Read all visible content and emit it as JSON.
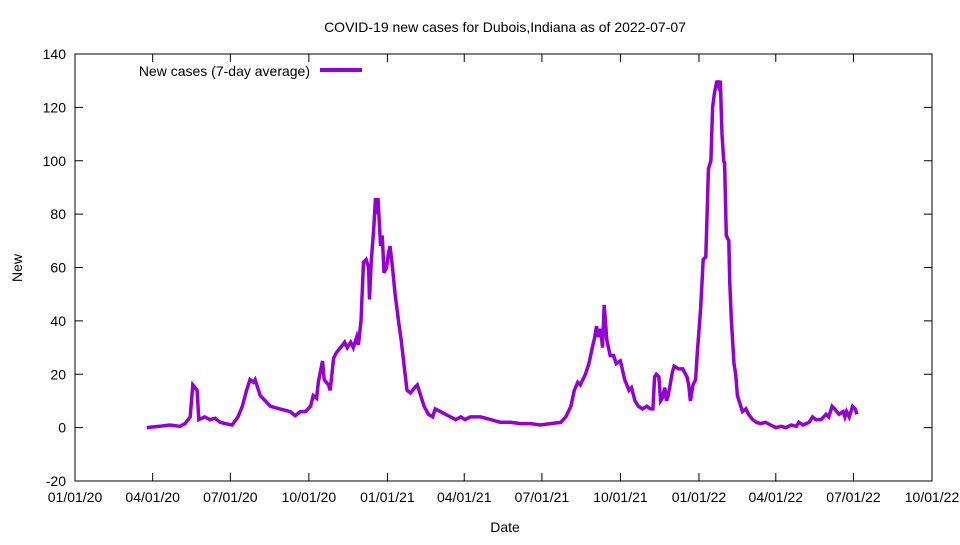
{
  "chart_data": {
    "type": "line",
    "title": "COVID-19 new cases for Dubois,Indiana as of 2022-07-07",
    "xlabel": "Date",
    "ylabel": "New",
    "xlim": [
      "2020-01-01",
      "2022-10-01"
    ],
    "ylim": [
      -20,
      140
    ],
    "x_ticks": [
      "01/01/20",
      "04/01/20",
      "07/01/20",
      "10/01/20",
      "01/01/21",
      "04/01/21",
      "07/01/21",
      "10/01/21",
      "01/01/22",
      "04/01/22",
      "07/01/22",
      "10/01/22"
    ],
    "x_tick_dates": [
      "2020-01-01",
      "2020-04-01",
      "2020-07-01",
      "2020-10-01",
      "2021-01-01",
      "2021-04-01",
      "2021-07-01",
      "2021-10-01",
      "2022-01-01",
      "2022-04-01",
      "2022-07-01",
      "2022-10-01"
    ],
    "y_ticks": [
      -20,
      0,
      20,
      40,
      60,
      80,
      100,
      120,
      140
    ],
    "grid": false,
    "legend_placement": "top-left",
    "series": [
      {
        "name": "New cases (7-day average)",
        "color": "#9400D3",
        "points": [
          [
            "2020-03-25",
            0
          ],
          [
            "2020-04-09",
            0.5
          ],
          [
            "2020-04-21",
            1
          ],
          [
            "2020-05-03",
            0.5
          ],
          [
            "2020-05-09",
            1.5
          ],
          [
            "2020-05-15",
            4
          ],
          [
            "2020-05-18",
            16
          ],
          [
            "2020-05-23",
            14
          ],
          [
            "2020-05-25",
            3
          ],
          [
            "2020-06-01",
            4
          ],
          [
            "2020-06-07",
            3
          ],
          [
            "2020-06-13",
            3.5
          ],
          [
            "2020-06-19",
            2
          ],
          [
            "2020-06-25",
            1.5
          ],
          [
            "2020-07-03",
            1
          ],
          [
            "2020-07-10",
            4
          ],
          [
            "2020-07-15",
            8
          ],
          [
            "2020-07-20",
            14
          ],
          [
            "2020-07-24",
            18
          ],
          [
            "2020-07-28",
            17
          ],
          [
            "2020-07-30",
            18
          ],
          [
            "2020-08-05",
            12
          ],
          [
            "2020-08-11",
            10
          ],
          [
            "2020-08-17",
            8
          ],
          [
            "2020-08-28",
            7
          ],
          [
            "2020-09-09",
            6
          ],
          [
            "2020-09-15",
            4.5
          ],
          [
            "2020-09-21",
            6
          ],
          [
            "2020-09-27",
            6
          ],
          [
            "2020-10-03",
            8
          ],
          [
            "2020-10-06",
            12
          ],
          [
            "2020-10-10",
            11
          ],
          [
            "2020-10-12",
            17
          ],
          [
            "2020-10-17",
            25
          ],
          [
            "2020-10-19",
            18
          ],
          [
            "2020-10-24",
            16
          ],
          [
            "2020-10-26",
            14
          ],
          [
            "2020-10-30",
            26
          ],
          [
            "2020-11-02",
            28
          ],
          [
            "2020-11-07",
            30
          ],
          [
            "2020-11-12",
            32
          ],
          [
            "2020-11-15",
            30
          ],
          [
            "2020-11-19",
            32
          ],
          [
            "2020-11-22",
            30
          ],
          [
            "2020-11-26",
            34
          ],
          [
            "2020-11-28",
            31
          ],
          [
            "2020-12-01",
            40
          ],
          [
            "2020-12-04",
            62
          ],
          [
            "2020-12-07",
            63
          ],
          [
            "2020-12-10",
            60
          ],
          [
            "2020-12-11",
            48
          ],
          [
            "2020-12-13",
            62
          ],
          [
            "2020-12-16",
            75
          ],
          [
            "2020-12-18",
            86
          ],
          [
            "2020-12-20",
            80
          ],
          [
            "2020-12-21",
            86
          ],
          [
            "2020-12-24",
            68
          ],
          [
            "2020-12-26",
            72
          ],
          [
            "2020-12-28",
            58
          ],
          [
            "2020-12-31",
            60
          ],
          [
            "2021-01-02",
            65
          ],
          [
            "2021-01-04",
            68
          ],
          [
            "2021-01-07",
            60
          ],
          [
            "2021-01-10",
            50
          ],
          [
            "2021-01-14",
            40
          ],
          [
            "2021-01-17",
            33
          ],
          [
            "2021-01-21",
            22
          ],
          [
            "2021-01-24",
            14
          ],
          [
            "2021-01-28",
            13
          ],
          [
            "2021-02-02",
            15
          ],
          [
            "2021-02-05",
            16
          ],
          [
            "2021-02-09",
            12
          ],
          [
            "2021-02-13",
            8
          ],
          [
            "2021-02-18",
            5
          ],
          [
            "2021-02-23",
            4
          ],
          [
            "2021-02-26",
            7
          ],
          [
            "2021-03-04",
            6
          ],
          [
            "2021-03-10",
            5
          ],
          [
            "2021-03-16",
            4
          ],
          [
            "2021-03-22",
            3
          ],
          [
            "2021-03-28",
            4
          ],
          [
            "2021-04-02",
            3
          ],
          [
            "2021-04-08",
            4
          ],
          [
            "2021-04-20",
            4
          ],
          [
            "2021-05-02",
            3
          ],
          [
            "2021-05-13",
            2
          ],
          [
            "2021-05-25",
            2
          ],
          [
            "2021-06-06",
            1.5
          ],
          [
            "2021-06-18",
            1.5
          ],
          [
            "2021-06-29",
            1
          ],
          [
            "2021-07-11",
            1.5
          ],
          [
            "2021-07-23",
            2
          ],
          [
            "2021-07-29",
            4
          ],
          [
            "2021-08-04",
            8
          ],
          [
            "2021-08-08",
            14
          ],
          [
            "2021-08-12",
            17
          ],
          [
            "2021-08-15",
            16
          ],
          [
            "2021-08-21",
            20
          ],
          [
            "2021-08-25",
            24
          ],
          [
            "2021-08-29",
            30
          ],
          [
            "2021-09-01",
            34
          ],
          [
            "2021-09-03",
            38
          ],
          [
            "2021-09-05",
            34
          ],
          [
            "2021-09-08",
            37
          ],
          [
            "2021-09-10",
            30
          ],
          [
            "2021-09-12",
            46
          ],
          [
            "2021-09-15",
            33
          ],
          [
            "2021-09-17",
            30
          ],
          [
            "2021-09-19",
            27
          ],
          [
            "2021-09-23",
            27
          ],
          [
            "2021-09-26",
            24
          ],
          [
            "2021-10-01",
            25
          ],
          [
            "2021-10-06",
            18
          ],
          [
            "2021-10-11",
            14
          ],
          [
            "2021-10-14",
            15
          ],
          [
            "2021-10-18",
            10
          ],
          [
            "2021-10-22",
            8
          ],
          [
            "2021-10-27",
            7
          ],
          [
            "2021-11-01",
            8
          ],
          [
            "2021-11-05",
            7
          ],
          [
            "2021-11-08",
            7
          ],
          [
            "2021-11-10",
            19
          ],
          [
            "2021-11-12",
            20
          ],
          [
            "2021-11-15",
            19
          ],
          [
            "2021-11-17",
            10
          ],
          [
            "2021-11-19",
            11
          ],
          [
            "2021-11-22",
            15
          ],
          [
            "2021-11-24",
            10
          ],
          [
            "2021-11-26",
            12
          ],
          [
            "2021-12-01",
            21
          ],
          [
            "2021-12-03",
            23
          ],
          [
            "2021-12-08",
            22
          ],
          [
            "2021-12-13",
            22
          ],
          [
            "2021-12-18",
            19
          ],
          [
            "2021-12-20",
            16
          ],
          [
            "2021-12-22",
            10
          ],
          [
            "2021-12-25",
            16
          ],
          [
            "2021-12-28",
            18
          ],
          [
            "2021-12-30",
            28
          ],
          [
            "2022-01-03",
            45
          ],
          [
            "2022-01-06",
            63
          ],
          [
            "2022-01-09",
            64
          ],
          [
            "2022-01-11",
            85
          ],
          [
            "2022-01-12",
            97
          ],
          [
            "2022-01-15",
            100
          ],
          [
            "2022-01-17",
            120
          ],
          [
            "2022-01-19",
            125
          ],
          [
            "2022-01-22",
            130
          ],
          [
            "2022-01-24",
            128
          ],
          [
            "2022-01-26",
            130
          ],
          [
            "2022-01-28",
            110
          ],
          [
            "2022-01-30",
            100
          ],
          [
            "2022-01-31",
            99
          ],
          [
            "2022-02-02",
            72
          ],
          [
            "2022-02-05",
            70
          ],
          [
            "2022-02-06",
            55
          ],
          [
            "2022-02-08",
            40
          ],
          [
            "2022-02-11",
            24
          ],
          [
            "2022-02-13",
            20
          ],
          [
            "2022-02-15",
            12
          ],
          [
            "2022-02-19",
            8
          ],
          [
            "2022-02-21",
            6
          ],
          [
            "2022-02-25",
            7
          ],
          [
            "2022-02-28",
            5
          ],
          [
            "2022-03-05",
            3
          ],
          [
            "2022-03-09",
            2
          ],
          [
            "2022-03-14",
            1.5
          ],
          [
            "2022-03-20",
            2
          ],
          [
            "2022-03-26",
            1
          ],
          [
            "2022-04-01",
            0
          ],
          [
            "2022-04-07",
            0.5
          ],
          [
            "2022-04-13",
            0
          ],
          [
            "2022-04-19",
            1
          ],
          [
            "2022-04-25",
            0.5
          ],
          [
            "2022-04-28",
            2
          ],
          [
            "2022-05-03",
            1
          ],
          [
            "2022-05-10",
            2
          ],
          [
            "2022-05-14",
            4
          ],
          [
            "2022-05-18",
            3
          ],
          [
            "2022-05-24",
            3
          ],
          [
            "2022-05-30",
            5
          ],
          [
            "2022-06-02",
            4
          ],
          [
            "2022-06-06",
            8
          ],
          [
            "2022-06-09",
            7
          ],
          [
            "2022-06-14",
            5
          ],
          [
            "2022-06-19",
            6
          ],
          [
            "2022-06-21",
            4
          ],
          [
            "2022-06-23",
            6
          ],
          [
            "2022-06-26",
            4
          ],
          [
            "2022-06-28",
            6
          ],
          [
            "2022-06-30",
            8
          ],
          [
            "2022-07-03",
            7
          ],
          [
            "2022-07-05",
            5
          ]
        ]
      }
    ]
  }
}
